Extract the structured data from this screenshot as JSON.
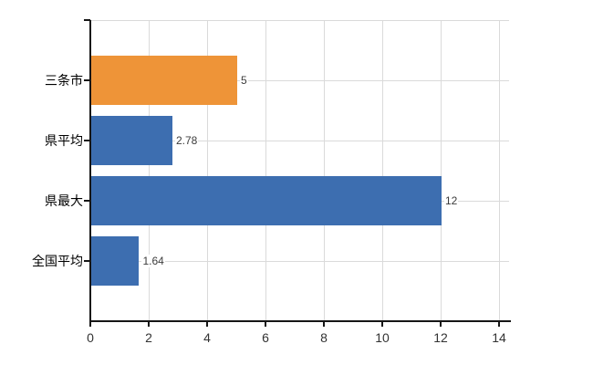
{
  "chart_data": {
    "type": "bar",
    "orientation": "horizontal",
    "title": "",
    "xlabel": "",
    "ylabel": "",
    "categories": [
      "三条市",
      "県平均",
      "県最大",
      "全国平均"
    ],
    "values": [
      5,
      2.78,
      12,
      1.64
    ],
    "value_labels": [
      "5",
      "2.78",
      "12",
      "1.64"
    ],
    "bar_colors": [
      "#ee9438",
      "#3d6eb0",
      "#3d6eb0",
      "#3d6eb0"
    ],
    "xlim": [
      0,
      14
    ],
    "x_ticks": [
      0,
      2,
      4,
      6,
      8,
      10,
      12,
      14
    ],
    "x_tick_labels": [
      "0",
      "2",
      "4",
      "6",
      "8",
      "10",
      "12",
      "14"
    ],
    "grid": true,
    "legend": false
  },
  "colors": {
    "background": "#ffffff",
    "highlight_bar": "#ee9438",
    "default_bar": "#3d6eb0",
    "gridline": "#dadada",
    "axis": "#161616",
    "x_tick_label": "#333333",
    "category_label": "#000000",
    "value_label": "#3c3c3c"
  }
}
